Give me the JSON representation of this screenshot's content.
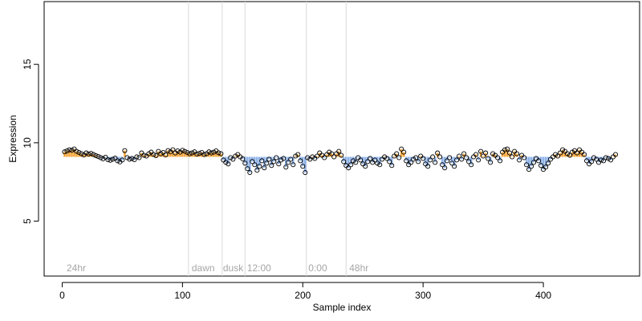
{
  "chart_data": {
    "type": "scatter",
    "title": "",
    "xlabel": "Sample index",
    "ylabel": "Expression",
    "xlim": [
      -15,
      480
    ],
    "ylim": [
      1.5,
      19
    ],
    "x_ticks": [
      0,
      100,
      200,
      300,
      400
    ],
    "y_ticks": [
      5,
      10,
      15
    ],
    "grid": false,
    "legend": "none",
    "colors": {
      "above_baseline": "#f4a63a",
      "below_baseline": "#8fb3e8",
      "point_edge": "#000000",
      "region_line": "#d9d9d9",
      "region_text": "#a6a6a6"
    },
    "baseline": 9.1,
    "region_boundaries": [
      105,
      133,
      152,
      203,
      236
    ],
    "region_labels": [
      {
        "x": 3,
        "label": "24hr"
      },
      {
        "x": 107,
        "label": "dawn"
      },
      {
        "x": 133,
        "label": "dusk"
      },
      {
        "x": 153,
        "label": "12:00"
      },
      {
        "x": 204,
        "label": "0:00"
      },
      {
        "x": 238,
        "label": "48hr"
      }
    ],
    "points": [
      [
        2,
        9.42
      ],
      [
        4,
        9.48
      ],
      [
        6,
        9.55
      ],
      [
        8,
        9.52
      ],
      [
        10,
        9.6
      ],
      [
        12,
        9.45
      ],
      [
        14,
        9.38
      ],
      [
        16,
        9.3
      ],
      [
        18,
        9.22
      ],
      [
        20,
        9.35
      ],
      [
        22,
        9.28
      ],
      [
        24,
        9.32
      ],
      [
        26,
        9.25
      ],
      [
        28,
        9.18
      ],
      [
        30,
        9.12
      ],
      [
        32,
        9.05
      ],
      [
        34,
        8.98
      ],
      [
        36,
        9.08
      ],
      [
        38,
        8.92
      ],
      [
        40,
        8.88
      ],
      [
        42,
        8.95
      ],
      [
        44,
        9.02
      ],
      [
        46,
        8.85
      ],
      [
        48,
        8.78
      ],
      [
        50,
        8.9
      ],
      [
        52,
        9.5
      ],
      [
        54,
        9.05
      ],
      [
        56,
        8.95
      ],
      [
        58,
        9.0
      ],
      [
        60,
        8.92
      ],
      [
        62,
        9.1
      ],
      [
        64,
        9.05
      ],
      [
        66,
        9.35
      ],
      [
        68,
        9.2
      ],
      [
        70,
        9.15
      ],
      [
        72,
        9.3
      ],
      [
        74,
        9.4
      ],
      [
        76,
        9.25
      ],
      [
        78,
        9.18
      ],
      [
        80,
        9.45
      ],
      [
        82,
        9.3
      ],
      [
        84,
        9.38
      ],
      [
        86,
        9.22
      ],
      [
        88,
        9.5
      ],
      [
        90,
        9.42
      ],
      [
        92,
        9.55
      ],
      [
        94,
        9.35
      ],
      [
        96,
        9.48
      ],
      [
        98,
        9.4
      ],
      [
        100,
        9.52
      ],
      [
        102,
        9.45
      ],
      [
        104,
        9.38
      ],
      [
        106,
        9.3
      ],
      [
        108,
        9.35
      ],
      [
        110,
        9.42
      ],
      [
        112,
        9.28
      ],
      [
        114,
        9.32
      ],
      [
        116,
        9.38
      ],
      [
        118,
        9.25
      ],
      [
        120,
        9.3
      ],
      [
        122,
        9.42
      ],
      [
        124,
        9.35
      ],
      [
        126,
        9.4
      ],
      [
        128,
        9.48
      ],
      [
        130,
        9.36
      ],
      [
        132,
        9.3
      ],
      [
        134,
        8.9
      ],
      [
        136,
        8.75
      ],
      [
        138,
        8.65
      ],
      [
        140,
        9.05
      ],
      [
        142,
        8.95
      ],
      [
        144,
        9.15
      ],
      [
        146,
        9.25
      ],
      [
        148,
        9.1
      ],
      [
        150,
        8.98
      ],
      [
        152,
        8.7
      ],
      [
        154,
        8.35
      ],
      [
        156,
        8.1
      ],
      [
        158,
        8.8
      ],
      [
        160,
        8.6
      ],
      [
        162,
        8.25
      ],
      [
        164,
        8.5
      ],
      [
        166,
        8.85
      ],
      [
        168,
        8.4
      ],
      [
        170,
        8.7
      ],
      [
        172,
        8.95
      ],
      [
        174,
        8.55
      ],
      [
        176,
        8.8
      ],
      [
        178,
        9.05
      ],
      [
        180,
        8.65
      ],
      [
        182,
        8.9
      ],
      [
        184,
        9.0
      ],
      [
        186,
        8.45
      ],
      [
        188,
        8.75
      ],
      [
        190,
        8.95
      ],
      [
        192,
        8.6
      ],
      [
        194,
        9.15
      ],
      [
        196,
        9.25
      ],
      [
        198,
        8.85
      ],
      [
        200,
        8.5
      ],
      [
        202,
        8.1
      ],
      [
        204,
        9.05
      ],
      [
        206,
        8.95
      ],
      [
        208,
        9.1
      ],
      [
        210,
        9.0
      ],
      [
        212,
        9.15
      ],
      [
        214,
        9.35
      ],
      [
        216,
        9.2
      ],
      [
        218,
        9.05
      ],
      [
        220,
        9.25
      ],
      [
        222,
        9.4
      ],
      [
        224,
        9.3
      ],
      [
        226,
        9.1
      ],
      [
        228,
        9.3
      ],
      [
        230,
        9.45
      ],
      [
        232,
        9.2
      ],
      [
        234,
        8.8
      ],
      [
        236,
        8.55
      ],
      [
        238,
        8.4
      ],
      [
        240,
        8.6
      ],
      [
        242,
        8.85
      ],
      [
        244,
        8.75
      ],
      [
        246,
        9.05
      ],
      [
        248,
        8.9
      ],
      [
        250,
        8.65
      ],
      [
        252,
        8.5
      ],
      [
        254,
        8.8
      ],
      [
        256,
        9.0
      ],
      [
        258,
        8.75
      ],
      [
        260,
        8.9
      ],
      [
        262,
        8.7
      ],
      [
        264,
        8.6
      ],
      [
        266,
        8.95
      ],
      [
        268,
        9.1
      ],
      [
        270,
        9.0
      ],
      [
        272,
        8.8
      ],
      [
        274,
        8.55
      ],
      [
        276,
        9.15
      ],
      [
        278,
        9.3
      ],
      [
        280,
        9.05
      ],
      [
        282,
        9.6
      ],
      [
        284,
        9.4
      ],
      [
        286,
        8.85
      ],
      [
        288,
        8.6
      ],
      [
        290,
        8.75
      ],
      [
        292,
        8.95
      ],
      [
        294,
        9.05
      ],
      [
        296,
        8.8
      ],
      [
        298,
        9.15
      ],
      [
        300,
        9.0
      ],
      [
        302,
        8.65
      ],
      [
        304,
        8.5
      ],
      [
        306,
        8.9
      ],
      [
        308,
        9.1
      ],
      [
        310,
        8.75
      ],
      [
        312,
        9.35
      ],
      [
        314,
        9.1
      ],
      [
        316,
        8.6
      ],
      [
        318,
        8.4
      ],
      [
        320,
        8.85
      ],
      [
        322,
        9.05
      ],
      [
        324,
        8.7
      ],
      [
        326,
        8.5
      ],
      [
        328,
        8.9
      ],
      [
        330,
        9.15
      ],
      [
        332,
        8.95
      ],
      [
        334,
        9.3
      ],
      [
        336,
        9.05
      ],
      [
        338,
        8.8
      ],
      [
        340,
        8.6
      ],
      [
        342,
        9.1
      ],
      [
        344,
        9.25
      ],
      [
        346,
        8.9
      ],
      [
        348,
        9.45
      ],
      [
        350,
        9.15
      ],
      [
        352,
        9.35
      ],
      [
        354,
        9.0
      ],
      [
        356,
        8.75
      ],
      [
        358,
        9.3
      ],
      [
        360,
        9.2
      ],
      [
        362,
        9.05
      ],
      [
        364,
        8.85
      ],
      [
        366,
        9.4
      ],
      [
        368,
        9.55
      ],
      [
        370,
        9.6
      ],
      [
        372,
        9.35
      ],
      [
        374,
        9.1
      ],
      [
        376,
        9.45
      ],
      [
        378,
        9.3
      ],
      [
        380,
        8.9
      ],
      [
        382,
        9.2
      ],
      [
        384,
        9.05
      ],
      [
        386,
        8.6
      ],
      [
        388,
        8.3
      ],
      [
        390,
        8.5
      ],
      [
        392,
        8.75
      ],
      [
        394,
        9.0
      ],
      [
        396,
        8.85
      ],
      [
        398,
        8.55
      ],
      [
        400,
        8.3
      ],
      [
        402,
        8.45
      ],
      [
        404,
        8.7
      ],
      [
        406,
        8.95
      ],
      [
        408,
        9.1
      ],
      [
        410,
        9.25
      ],
      [
        412,
        9.15
      ],
      [
        414,
        9.35
      ],
      [
        416,
        9.55
      ],
      [
        418,
        9.45
      ],
      [
        420,
        9.3
      ],
      [
        422,
        9.2
      ],
      [
        424,
        9.4
      ],
      [
        426,
        9.5
      ],
      [
        428,
        9.35
      ],
      [
        430,
        9.55
      ],
      [
        432,
        9.4
      ],
      [
        434,
        9.25
      ],
      [
        436,
        8.85
      ],
      [
        438,
        8.65
      ],
      [
        440,
        8.8
      ],
      [
        442,
        9.05
      ],
      [
        444,
        8.95
      ],
      [
        446,
        8.75
      ],
      [
        448,
        8.9
      ],
      [
        450,
        8.85
      ],
      [
        452,
        9.05
      ],
      [
        454,
        9.0
      ],
      [
        456,
        8.9
      ],
      [
        458,
        9.1
      ],
      [
        460,
        9.25
      ]
    ]
  }
}
